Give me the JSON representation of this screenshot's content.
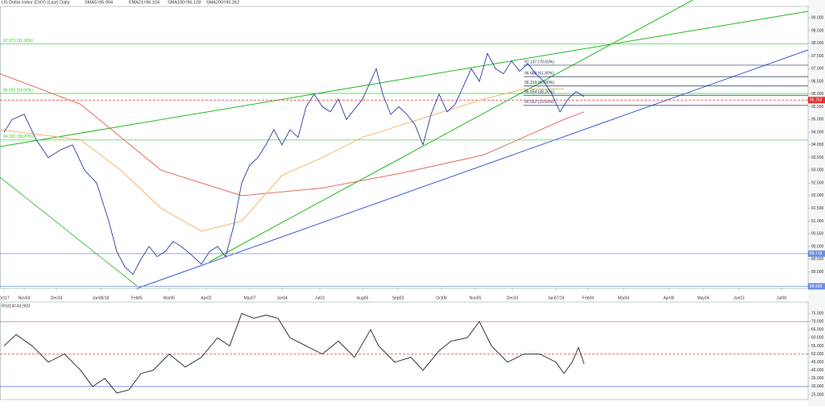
{
  "chart_data": [
    {
      "type": "line",
      "title": "US Dollar Index (DXY) (Last) Daily",
      "subtitle": "SMA5=95.994",
      "indicator_texts": [
        "EMA21=96.104",
        "SMA100=96.128",
        "SMA200=95.262"
      ],
      "xlim": [
        0,
        100
      ],
      "xticks": [
        {
          "value": 0.5,
          "label": "Oct17"
        },
        {
          "value": 3,
          "label": "Nov04"
        },
        {
          "value": 7,
          "label": "Dec04"
        },
        {
          "value": 12.5,
          "label": "Jan08/18"
        },
        {
          "value": 17,
          "label": "Feb05"
        },
        {
          "value": 21,
          "label": "Mar05"
        },
        {
          "value": 25.6,
          "label": "Apr02"
        },
        {
          "value": 31,
          "label": "May07"
        },
        {
          "value": 35,
          "label": "Jun04"
        },
        {
          "value": 39.7,
          "label": "Jul02"
        },
        {
          "value": 45,
          "label": "Aug06"
        },
        {
          "value": 49.4,
          "label": "Sep03"
        },
        {
          "value": 54.8,
          "label": "Oct08"
        },
        {
          "value": 59,
          "label": "Nov05"
        },
        {
          "value": 63.6,
          "label": "Dec03"
        },
        {
          "value": 69,
          "label": "Jan07/19"
        },
        {
          "value": 73,
          "label": "Feb04"
        },
        {
          "value": 77.4,
          "label": "Mar04"
        },
        {
          "value": 83,
          "label": "Apr08"
        },
        {
          "value": 87.3,
          "label": "May06"
        },
        {
          "value": 91.7,
          "label": "Jun03"
        },
        {
          "value": 97,
          "label": "Jul08"
        }
      ],
      "ylim": [
        88.35,
        99.45
      ],
      "yticks": [
        {
          "value": 89,
          "label": "89.000"
        },
        {
          "value": 89.5,
          "label": "89.500"
        },
        {
          "value": 90,
          "label": "90.000"
        },
        {
          "value": 90.5,
          "label": "90.500"
        },
        {
          "value": 91,
          "label": "91.000"
        },
        {
          "value": 91.5,
          "label": "91.500"
        },
        {
          "value": 92,
          "label": "92.000"
        },
        {
          "value": 92.5,
          "label": "92.500"
        },
        {
          "value": 93,
          "label": "93.000"
        },
        {
          "value": 93.5,
          "label": "93.500"
        },
        {
          "value": 94,
          "label": "94.000"
        },
        {
          "value": 94.5,
          "label": "94.500"
        },
        {
          "value": 95,
          "label": "95.000"
        },
        {
          "value": 95.5,
          "label": "95.500"
        },
        {
          "value": 96,
          "label": "96.000"
        },
        {
          "value": 96.5,
          "label": "96.500"
        },
        {
          "value": 97,
          "label": "97.000"
        },
        {
          "value": 97.5,
          "label": "97.500"
        },
        {
          "value": 98,
          "label": "98.000"
        },
        {
          "value": 98.5,
          "label": "98.500"
        },
        {
          "value": 99,
          "label": "99.000"
        }
      ],
      "levels": [
        {
          "value": 97.973,
          "label": "97.973 (91.30%)",
          "color": "#33cc33",
          "side": "left"
        },
        {
          "value": 96.026,
          "label": "96.026 (53.00%)",
          "color": "#33cc33",
          "side": "left"
        },
        {
          "value": 94.191,
          "label": "94.191 (38.20%)",
          "color": "#33cc33",
          "side": "left"
        },
        {
          "value": 97.137,
          "label": "97.137 (78.60%)",
          "color": "#223355",
          "side": "mid"
        },
        {
          "value": 96.688,
          "label": "96.688 (61.80%)",
          "color": "#223355",
          "side": "mid"
        },
        {
          "value": 96.319,
          "label": "96.319 (50.00%)",
          "color": "#223355",
          "side": "mid"
        },
        {
          "value": 95.954,
          "label": "95.954 (38.20%)",
          "color": "#223355",
          "side": "mid"
        },
        {
          "value": 95.552,
          "label": "95.552 (23.60%)",
          "color": "#223355",
          "side": "mid"
        },
        {
          "value": 95.763,
          "label": "95.763",
          "color": "#e03030",
          "side": "right",
          "dashed": true
        },
        {
          "value": 89.718,
          "label": "89.718",
          "color": "#6d8fe0",
          "side": "right"
        },
        {
          "value": 88.43,
          "label": "88.430",
          "color": "#6d8fe0",
          "side": "right"
        }
      ],
      "series": [
        {
          "color": "#e35b4f",
          "x": [
            0,
            10,
            20,
            30,
            40,
            50,
            60,
            65,
            70,
            72.5
          ],
          "values": [
            96.8,
            95.6,
            93.0,
            92.0,
            92.3,
            92.9,
            93.6,
            94.3,
            95.0,
            95.3
          ]
        },
        {
          "color": "#f0b060",
          "x": [
            0,
            10,
            15,
            20,
            25,
            30,
            35,
            40,
            45,
            50,
            55,
            60,
            65,
            70
          ],
          "values": [
            94.6,
            94.2,
            93.0,
            91.5,
            90.6,
            91.0,
            92.8,
            93.5,
            94.3,
            94.8,
            95.3,
            95.8,
            96.2,
            96.2
          ]
        },
        {
          "color": "#2a3f9e",
          "x": [
            0.5,
            1.5,
            3,
            4.5,
            6,
            7.5,
            9,
            10.5,
            12,
            13.5,
            14.5,
            15.5,
            16.5,
            17.5,
            18.5,
            19.5,
            20.5,
            21.5,
            22.5,
            24,
            25,
            26,
            27,
            28,
            29,
            30,
            31,
            32,
            33,
            34,
            35,
            36,
            37,
            38,
            39,
            40,
            41,
            42,
            43,
            44,
            45,
            46,
            46.7,
            47.5,
            48.5,
            49.5,
            50.5,
            51.5,
            52.5,
            53.5,
            54.5,
            55.5,
            56.5,
            57.5,
            58.5,
            59.5,
            60.5,
            61.5,
            62.5,
            63.5,
            64.5,
            65.5,
            66.5,
            67.5,
            68.5,
            69.5,
            70.5,
            71.5,
            72.5
          ],
          "values": [
            94.5,
            95.0,
            95.2,
            94.2,
            93.5,
            93.8,
            94.0,
            93.0,
            92.5,
            91.0,
            89.8,
            89.2,
            88.9,
            89.5,
            90.0,
            89.6,
            89.8,
            90.2,
            90.0,
            89.6,
            89.3,
            89.8,
            90.0,
            89.6,
            90.8,
            92.5,
            93.2,
            93.5,
            94.0,
            94.6,
            94.0,
            94.6,
            94.3,
            95.5,
            96.0,
            95.5,
            95.3,
            95.8,
            95.0,
            95.4,
            95.8,
            96.5,
            97.0,
            96.0,
            95.2,
            95.5,
            95.2,
            94.8,
            94.0,
            95.2,
            96.0,
            95.3,
            95.6,
            96.3,
            97.0,
            96.5,
            97.6,
            97.0,
            96.8,
            97.3,
            96.9,
            97.2,
            96.8,
            96.5,
            96.0,
            95.3,
            95.8,
            96.1,
            95.9
          ]
        }
      ]
    },
    {
      "type": "line",
      "title": "RSI14=43.903",
      "xlim": [
        0,
        100
      ],
      "ylim": [
        22,
        82
      ],
      "yticks": [
        {
          "value": 25,
          "label": "25.000"
        },
        {
          "value": 30,
          "label": "30.000"
        },
        {
          "value": 35,
          "label": "35.000"
        },
        {
          "value": 40,
          "label": "40.000"
        },
        {
          "value": 45,
          "label": "45.000"
        },
        {
          "value": 50,
          "label": "50.000"
        },
        {
          "value": 55,
          "label": "55.000"
        },
        {
          "value": 60,
          "label": "60.000"
        },
        {
          "value": 65,
          "label": "65.000"
        },
        {
          "value": 70,
          "label": "70.000"
        },
        {
          "value": 75,
          "label": "75.000"
        }
      ],
      "levels": [
        {
          "value": 70,
          "color": "#e05050"
        },
        {
          "value": 50,
          "color": "#e05050",
          "dashed": true
        },
        {
          "value": 30,
          "color": "#5070d0"
        }
      ],
      "series": [
        {
          "color": "#222222",
          "x": [
            0.5,
            2,
            4,
            6,
            8,
            10,
            11.5,
            13,
            14.5,
            16,
            17.5,
            19,
            21,
            23,
            25,
            27,
            28.5,
            30,
            31.5,
            33,
            34.5,
            36,
            38,
            40,
            42,
            44,
            46,
            47,
            49,
            51,
            52.5,
            54.5,
            56,
            58,
            59.5,
            61,
            63,
            65,
            67,
            69,
            70,
            71,
            71.8,
            72.5
          ],
          "values": [
            55,
            62,
            55,
            45,
            50,
            40,
            30,
            35,
            26,
            28,
            38,
            40,
            50,
            42,
            48,
            60,
            55,
            75,
            72,
            74,
            72,
            60,
            55,
            50,
            58,
            48,
            65,
            55,
            45,
            48,
            40,
            52,
            58,
            60,
            70,
            55,
            45,
            50,
            50,
            45,
            38,
            45,
            54,
            44
          ]
        }
      ]
    }
  ]
}
